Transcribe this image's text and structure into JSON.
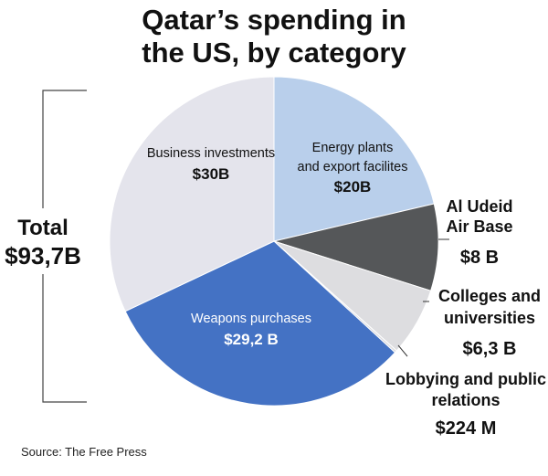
{
  "chart_data": {
    "type": "pie",
    "title_lines": [
      "Qatar’s spending in",
      "the US, by category"
    ],
    "total": {
      "label": "Total",
      "value_label": "$93,7B"
    },
    "slices": [
      {
        "name_lines": [
          "Energy plants",
          "and export facilites"
        ],
        "value": 20,
        "value_label": "$20B",
        "color": "#b9cfeb",
        "text_color": "#111111",
        "placement": "inside"
      },
      {
        "name_lines": [
          "Al Udeid",
          "Air Base"
        ],
        "value": 8,
        "value_label": "$8 B",
        "color": "#555759",
        "text_color": "#111111",
        "placement": "outside"
      },
      {
        "name_lines": [
          "Colleges and",
          "universities"
        ],
        "value": 6.3,
        "value_label": "$6,3 B",
        "color": "#dddde0",
        "text_color": "#111111",
        "placement": "outside"
      },
      {
        "name_lines": [
          "Lobbying and public",
          "relations"
        ],
        "value": 0.224,
        "value_label": "$224 M",
        "color": "#dddde0",
        "text_color": "#111111",
        "placement": "outside"
      },
      {
        "name_lines": [
          "Weapons purchases"
        ],
        "value": 29.2,
        "value_label": "$29,2 B",
        "color": "#4472c4",
        "text_color": "#ffffff",
        "placement": "inside"
      },
      {
        "name_lines": [
          "Business investments"
        ],
        "value": 30,
        "value_label": "$30B",
        "color": "#e4e4ec",
        "text_color": "#111111",
        "placement": "inside"
      }
    ],
    "source": "Source: The Free Press"
  }
}
